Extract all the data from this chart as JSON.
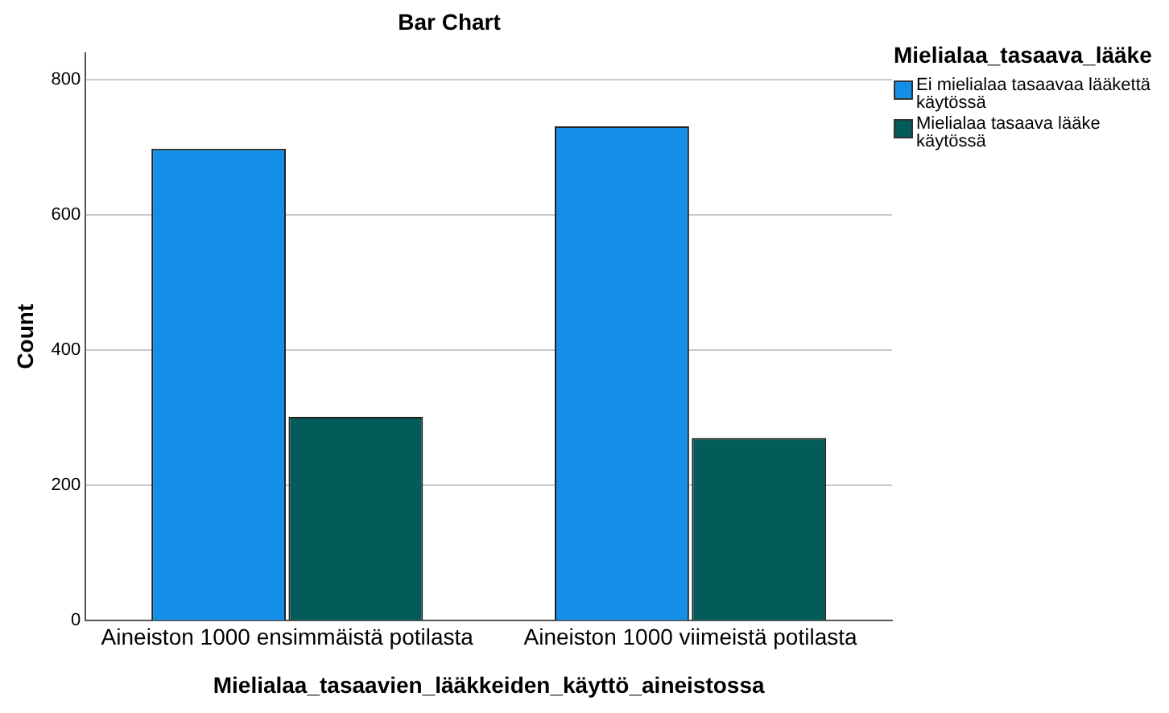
{
  "chart_data": {
    "type": "bar",
    "title": "Bar Chart",
    "xlabel": "Mielialaa_tasaavien_lääkkeiden_käyttö_aineistossa",
    "ylabel": "Count",
    "legend_title": "Mielialaa_tasaava_lääke",
    "categories": [
      "Aineiston 1000 ensimmäistä potilasta",
      "Aineiston 1000 viimeistä potilasta"
    ],
    "series": [
      {
        "name": "Ei mielialaa tasaavaa lääkettä käytössä",
        "color": "#148ee6",
        "values": [
          698,
          731
        ]
      },
      {
        "name": "Mielialaa tasaava lääke käytössä",
        "color": "#035c5a",
        "values": [
          301,
          270
        ]
      }
    ],
    "ylim": [
      0,
      840
    ],
    "yticks": [
      0,
      200,
      400,
      600,
      800
    ],
    "grid": "y",
    "legend": "right"
  }
}
